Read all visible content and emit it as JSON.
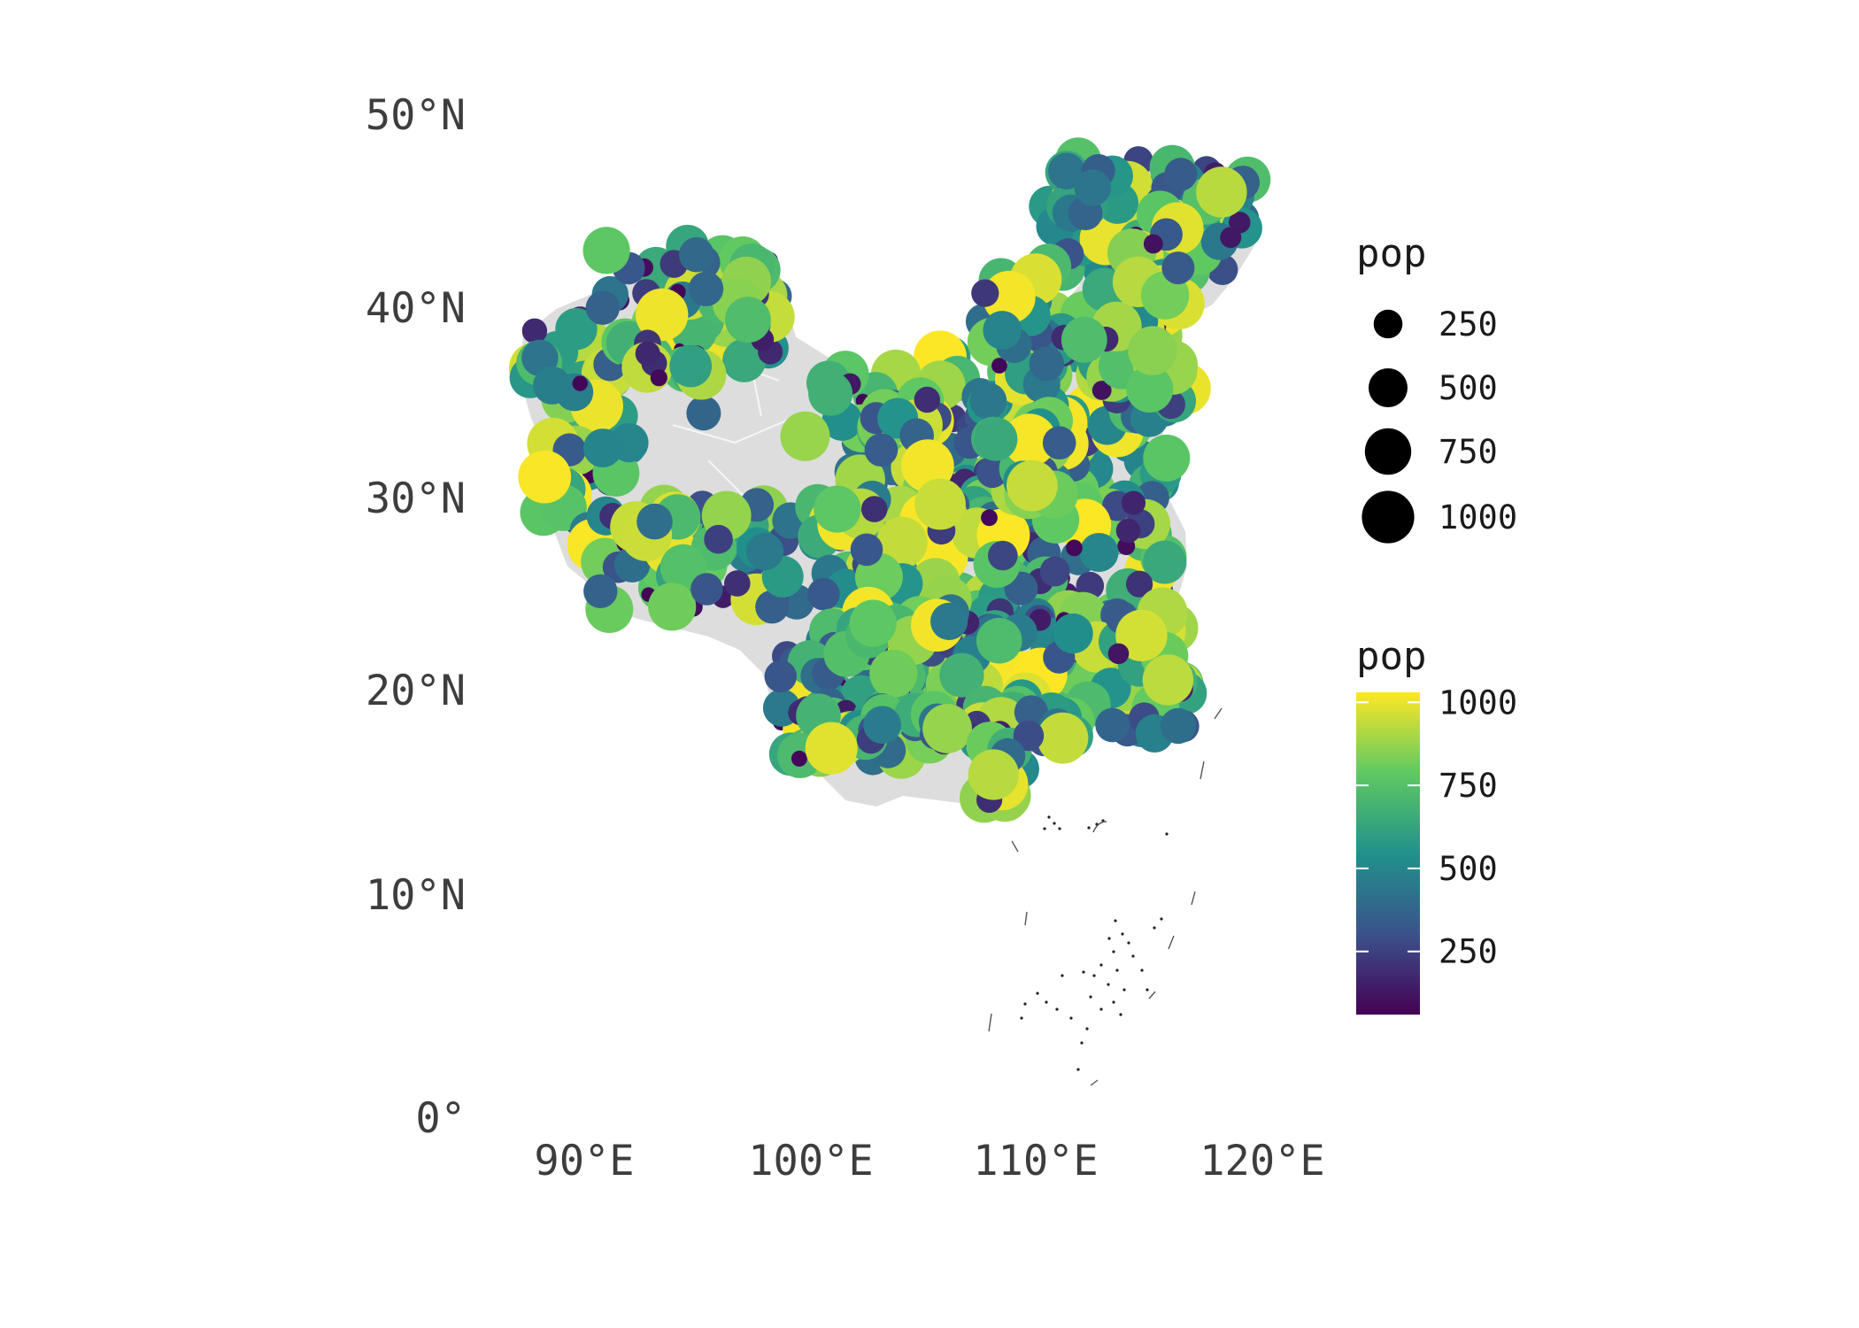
{
  "chart_data": {
    "type": "map-scatter",
    "projection": "conic, centred on China",
    "lat_ticks": [
      "50°N",
      "40°N",
      "30°N",
      "20°N",
      "10°N",
      "0°"
    ],
    "lon_ticks": [
      "90°E",
      "100°E",
      "110°E",
      "120°E"
    ],
    "lat_values": [
      50,
      40,
      30,
      20,
      10,
      0
    ],
    "lon_values": [
      90,
      100,
      110,
      120
    ],
    "variable": "pop",
    "size_legend": {
      "title": "pop",
      "breaks": [
        250,
        500,
        750,
        1000
      ],
      "labels": [
        "250",
        "500",
        "750",
        "1000"
      ]
    },
    "color_legend": {
      "title": "pop",
      "palette": "viridis",
      "colors": [
        "#440154",
        "#3b528b",
        "#21918c",
        "#5ec962",
        "#fde725"
      ],
      "breaks": [
        250,
        500,
        750,
        1000
      ],
      "labels": [
        "250",
        "500",
        "750",
        "1000"
      ],
      "limits": [
        60,
        1030
      ]
    },
    "point_count_approx": 900,
    "land_color": "#dddddd",
    "graticule_color": "#c4c4c4"
  }
}
